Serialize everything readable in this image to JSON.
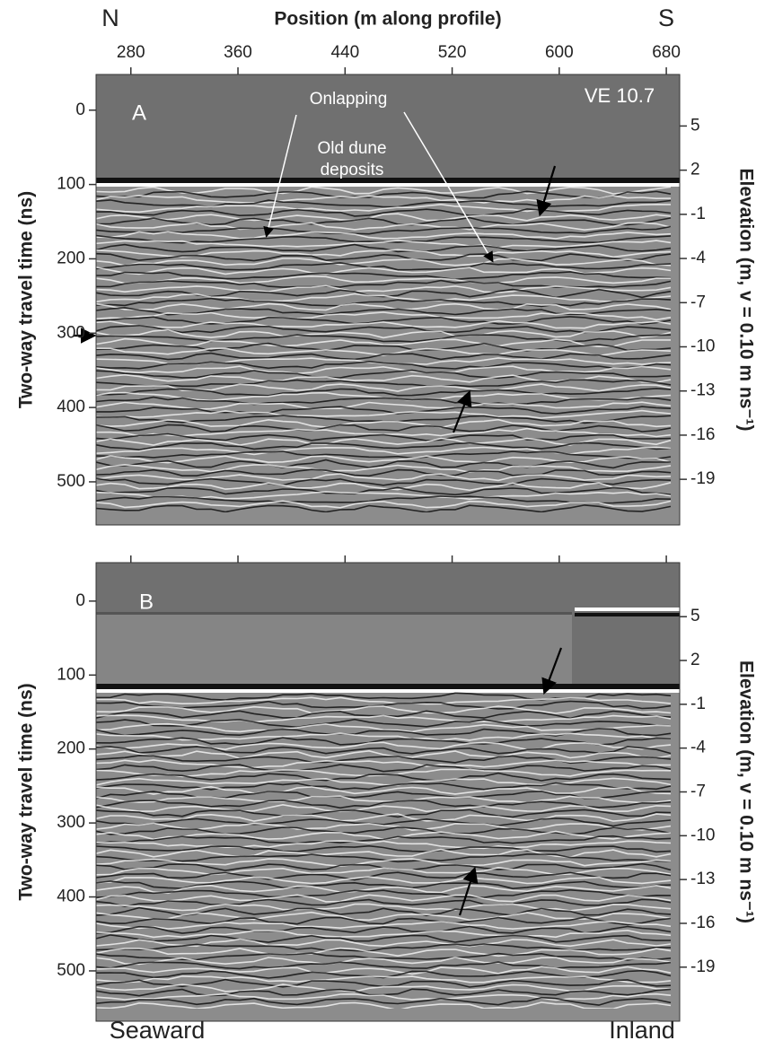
{
  "chart_data": [
    {
      "type": "radargram",
      "panel_label": "A",
      "title": "Position (m along profile)",
      "left_end_label": "N",
      "right_end_label": "S",
      "xlim": [
        254,
        690
      ],
      "xticks": [
        280,
        360,
        440,
        520,
        600,
        680
      ],
      "ylabel": "Two-way travel time (ns)",
      "ylim": [
        -48,
        558
      ],
      "yticks": [
        0,
        100,
        200,
        300,
        400,
        500
      ],
      "y2label": "Elevation (m, v = 0.10 m ns⁻¹)",
      "y2lim": [
        8.5,
        -22.1
      ],
      "y2ticks": [
        5,
        2,
        -1,
        -4,
        -7,
        -10,
        -13,
        -16,
        -19
      ],
      "annotations": [
        "VE 10.7",
        "Onlapping",
        [
          "Old dune",
          "deposits"
        ]
      ]
    },
    {
      "type": "radargram",
      "panel_label": "B",
      "xlim": [
        254,
        690
      ],
      "xticks": [
        280,
        360,
        440,
        520,
        600,
        680
      ],
      "ylabel": "Two-way travel time (ns)",
      "ylim": [
        -52,
        568
      ],
      "yticks": [
        0,
        100,
        200,
        300,
        400,
        500
      ],
      "y2label": "Elevation (m, v = 0.10 m ns⁻¹)",
      "y2lim": [
        8.7,
        -22.7
      ],
      "y2ticks": [
        5,
        2,
        -1,
        -4,
        -7,
        -10,
        -13,
        -16,
        -19
      ],
      "left_bottom_label": "Seaward",
      "right_bottom_label": "Inland"
    }
  ]
}
